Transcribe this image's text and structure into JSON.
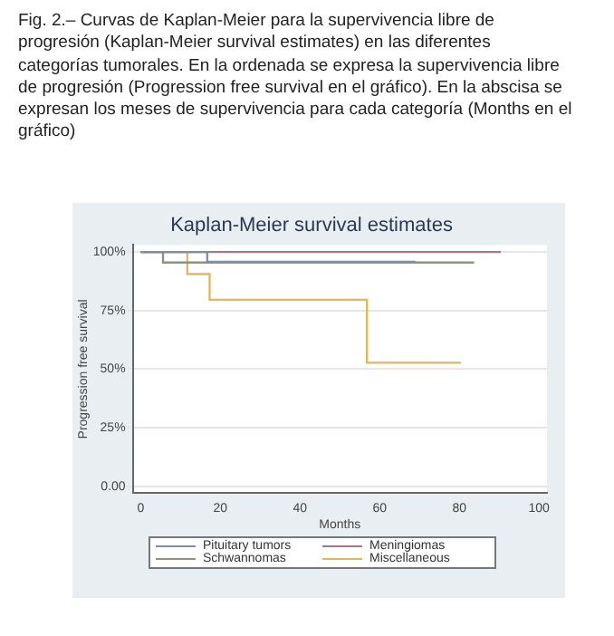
{
  "chart_data": {
    "type": "step",
    "title": "Kaplan-Meier survival estimates",
    "xlabel": "Months",
    "ylabel": "Progression free survival",
    "annotations": [
      "Fig. 2.– Curvas de Kaplan-Meier para la supervivencia libre de progresión (Kaplan-Meier survival estimates) en las diferentes categorías tumorales. En la ordenada se expresa la supervivencia libre de progresión (Progression free survival en el gráfico). En la abscisa se expresan los meses de supervivencia para cada categoría (Months en el gráfico)"
    ],
    "series": [
      {
        "name": "Pituitary tumors",
        "color": "#7f8fa6",
        "x": [
          0,
          16.7,
          69
        ],
        "values": [
          100,
          95.8,
          95.8
        ]
      },
      {
        "name": "Meningiomas",
        "color": "#a07888",
        "x": [
          0,
          90.4
        ],
        "values": [
          100,
          100
        ]
      },
      {
        "name": "Schwannomas",
        "color": "#8a957a",
        "x": [
          0,
          5.6,
          83.7
        ],
        "values": [
          100,
          95.5,
          95.5
        ]
      },
      {
        "name": "Miscellaneous",
        "color": "#e0b860",
        "x": [
          0,
          11.7,
          17.3,
          56.8,
          80.4
        ],
        "values": [
          100,
          90.6,
          79.6,
          52.7,
          52.7
        ]
      }
    ],
    "xlim": [
      -2,
      102
    ],
    "xticks": [
      0,
      20,
      40,
      60,
      80,
      100
    ],
    "ylim": [
      -3,
      103
    ],
    "yticks": [
      {
        "value": 0,
        "label": "0.00"
      },
      {
        "value": 25,
        "label": "25%"
      },
      {
        "value": 50,
        "label": "50%"
      },
      {
        "value": 75,
        "label": "75%"
      },
      {
        "value": 100,
        "label": "100%"
      }
    ],
    "grid": "y",
    "legend": "bottom"
  }
}
